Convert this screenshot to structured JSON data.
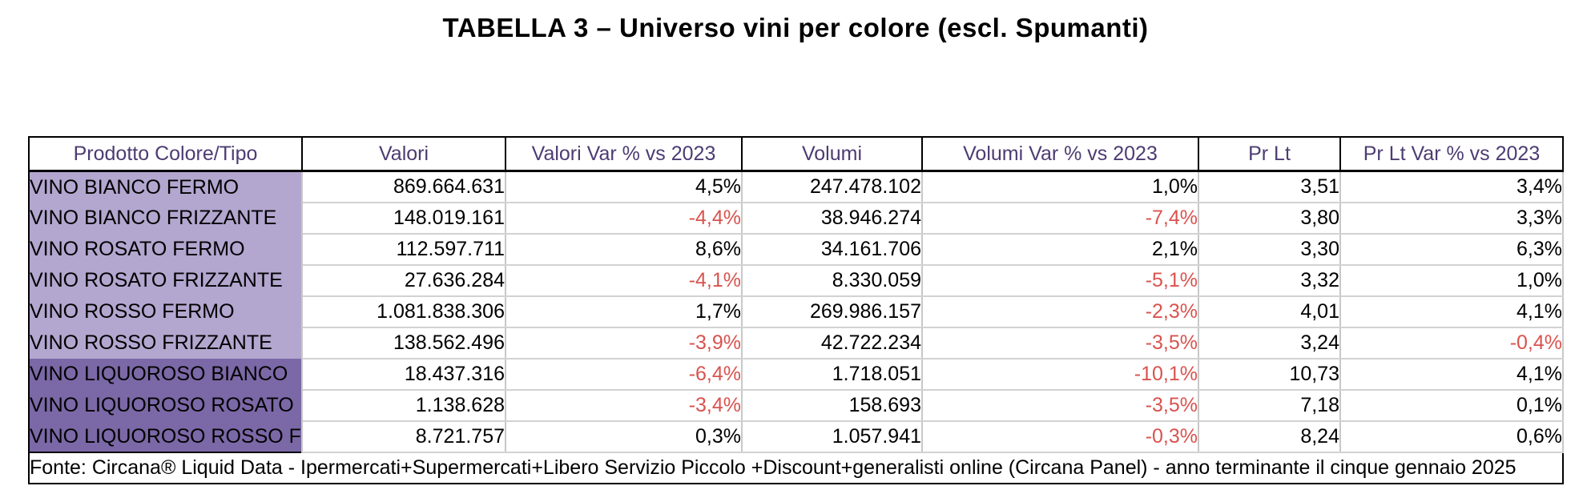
{
  "title": "TABELLA 3 – Universo vini per colore (escl. Spumanti)",
  "table": {
    "columns": [
      "Prodotto Colore/Tipo",
      "Valori",
      "Valori Var % vs 2023",
      "Volumi",
      "Volumi Var % vs 2023",
      "Pr Lt",
      "Pr Lt Var % vs 2023"
    ],
    "rows": [
      {
        "label": "VINO BIANCO FERMO",
        "group": "light",
        "valori": "869.664.631",
        "valori_var": "4,5%",
        "volumi": "247.478.102",
        "volumi_var": "1,0%",
        "pr_lt": "3,51",
        "pr_lt_var": "3,4%"
      },
      {
        "label": "VINO BIANCO FRIZZANTE",
        "group": "light",
        "valori": "148.019.161",
        "valori_var": "-4,4%",
        "volumi": "38.946.274",
        "volumi_var": "-7,4%",
        "pr_lt": "3,80",
        "pr_lt_var": "3,3%"
      },
      {
        "label": "VINO ROSATO FERMO",
        "group": "light",
        "valori": "112.597.711",
        "valori_var": "8,6%",
        "volumi": "34.161.706",
        "volumi_var": "2,1%",
        "pr_lt": "3,30",
        "pr_lt_var": "6,3%"
      },
      {
        "label": "VINO ROSATO FRIZZANTE",
        "group": "light",
        "valori": "27.636.284",
        "valori_var": "-4,1%",
        "volumi": "8.330.059",
        "volumi_var": "-5,1%",
        "pr_lt": "3,32",
        "pr_lt_var": "1,0%"
      },
      {
        "label": "VINO ROSSO FERMO",
        "group": "light",
        "valori": "1.081.838.306",
        "valori_var": "1,7%",
        "volumi": "269.986.157",
        "volumi_var": "-2,3%",
        "pr_lt": "4,01",
        "pr_lt_var": "4,1%"
      },
      {
        "label": "VINO ROSSO FRIZZANTE",
        "group": "light",
        "valori": "138.562.496",
        "valori_var": "-3,9%",
        "volumi": "42.722.234",
        "volumi_var": "-3,5%",
        "pr_lt": "3,24",
        "pr_lt_var": "-0,4%"
      },
      {
        "label": "VINO LIQUOROSO BIANCO",
        "group": "dark",
        "valori": "18.437.316",
        "valori_var": "-6,4%",
        "volumi": "1.718.051",
        "volumi_var": "-10,1%",
        "pr_lt": "10,73",
        "pr_lt_var": "4,1%"
      },
      {
        "label": "VINO LIQUOROSO ROSATO",
        "group": "dark",
        "valori": "1.138.628",
        "valori_var": "-3,4%",
        "volumi": "158.693",
        "volumi_var": "-3,5%",
        "pr_lt": "7,18",
        "pr_lt_var": "0,1%"
      },
      {
        "label": "VINO LIQUOROSO ROSSO F",
        "group": "dark",
        "valori": "8.721.757",
        "valori_var": "0,3%",
        "volumi": "1.057.941",
        "volumi_var": "-0,3%",
        "pr_lt": "8,24",
        "pr_lt_var": "0,6%"
      }
    ],
    "footer": "Fonte: Circana® Liquid Data - Ipermercati+Supermercati+Libero Servizio Piccolo +Discount+generalisti online (Circana Panel) - anno terminante il cinque gennaio 2025"
  },
  "colors": {
    "header_text": "#4c3c72",
    "row_group_light": "#b3a6cf",
    "row_group_dark": "#7b68a6",
    "negative_value": "#d9534f",
    "gridline": "#c8c8c8",
    "border": "#000000"
  }
}
